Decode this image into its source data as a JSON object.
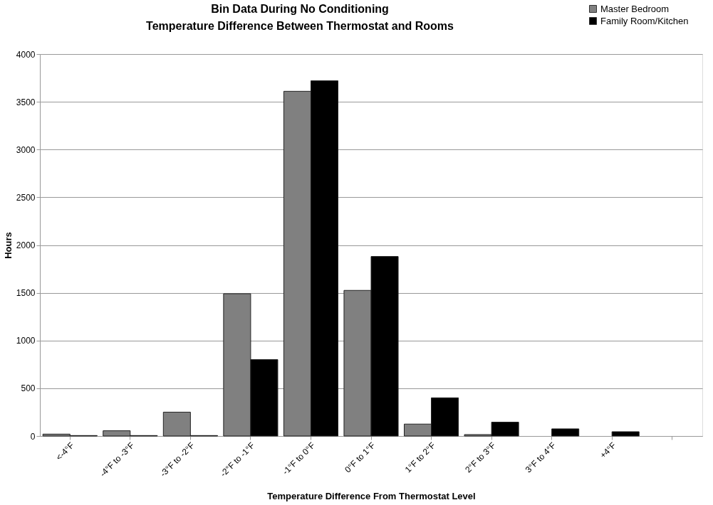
{
  "chart_data": {
    "type": "bar",
    "title": [
      "Bin Data During No Conditioning",
      "Temperature Difference Between Thermostat and Rooms"
    ],
    "xlabel": "Temperature Difference From Thermostat Level",
    "ylabel": "Hours",
    "categories": [
      "<-4°F",
      "-4°F to -3°F",
      "-3°F to -2°F",
      "-2°F to -1°F",
      "-1°F to 0°F",
      "0°F to 1°F",
      "1°F to 2°F",
      "2°F to 3°F",
      "3°F to 4°F",
      "+4°F",
      null
    ],
    "series": [
      {
        "name": "Master Bedroom",
        "color": "#808080",
        "values": [
          20,
          55,
          250,
          1490,
          3610,
          1525,
          125,
          15,
          0,
          0,
          null
        ]
      },
      {
        "name": "Family Room/Kitchen",
        "color": "#000000",
        "values": [
          5,
          5,
          5,
          800,
          3720,
          1880,
          400,
          145,
          75,
          45,
          null
        ]
      }
    ],
    "ylim": [
      0,
      4000
    ],
    "yticks": [
      0,
      500,
      1000,
      1500,
      2000,
      2500,
      3000,
      3500,
      4000
    ],
    "grid": "y",
    "legend": "top right"
  }
}
